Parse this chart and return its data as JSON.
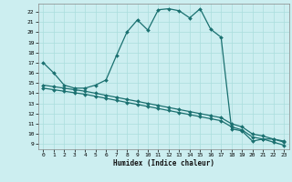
{
  "xlabel": "Humidex (Indice chaleur)",
  "bg_color": "#cceef0",
  "grid_color": "#aadddd",
  "line_color": "#1a7070",
  "xlim": [
    -0.5,
    23.5
  ],
  "ylim": [
    8.5,
    22.8
  ],
  "xticks": [
    0,
    1,
    2,
    3,
    4,
    5,
    6,
    7,
    8,
    9,
    10,
    11,
    12,
    13,
    14,
    15,
    16,
    17,
    18,
    19,
    20,
    21,
    22,
    23
  ],
  "yticks": [
    9,
    10,
    11,
    12,
    13,
    14,
    15,
    16,
    17,
    18,
    19,
    20,
    21,
    22
  ],
  "line1_x": [
    0,
    1,
    2,
    3,
    4,
    5,
    6,
    7,
    8,
    9,
    10,
    11,
    12,
    13,
    14,
    15,
    16,
    17,
    18,
    19,
    20,
    21,
    22,
    23
  ],
  "line1_y": [
    17.0,
    16.0,
    14.8,
    14.5,
    14.5,
    14.8,
    15.3,
    17.7,
    20.0,
    21.2,
    20.2,
    22.2,
    22.3,
    22.1,
    21.4,
    22.3,
    20.3,
    19.5,
    10.5,
    10.3,
    9.3,
    9.5,
    9.5,
    9.3
  ],
  "line2_x": [
    0,
    1,
    2,
    3,
    4,
    5,
    6,
    7,
    8,
    9,
    10,
    11,
    12,
    13,
    14,
    15,
    16,
    17,
    18,
    19,
    20,
    21,
    22,
    23
  ],
  "line2_y": [
    14.8,
    14.65,
    14.5,
    14.35,
    14.2,
    14.0,
    13.8,
    13.6,
    13.4,
    13.2,
    13.0,
    12.8,
    12.6,
    12.4,
    12.2,
    12.0,
    11.8,
    11.6,
    11.0,
    10.7,
    10.0,
    9.8,
    9.5,
    9.2
  ],
  "line3_x": [
    0,
    1,
    2,
    3,
    4,
    5,
    6,
    7,
    8,
    9,
    10,
    11,
    12,
    13,
    14,
    15,
    16,
    17,
    18,
    19,
    20,
    21,
    22,
    23
  ],
  "line3_y": [
    14.5,
    14.35,
    14.2,
    14.05,
    13.9,
    13.7,
    13.5,
    13.3,
    13.1,
    12.9,
    12.7,
    12.5,
    12.3,
    12.1,
    11.9,
    11.7,
    11.5,
    11.3,
    10.7,
    10.4,
    9.7,
    9.5,
    9.2,
    8.9
  ]
}
